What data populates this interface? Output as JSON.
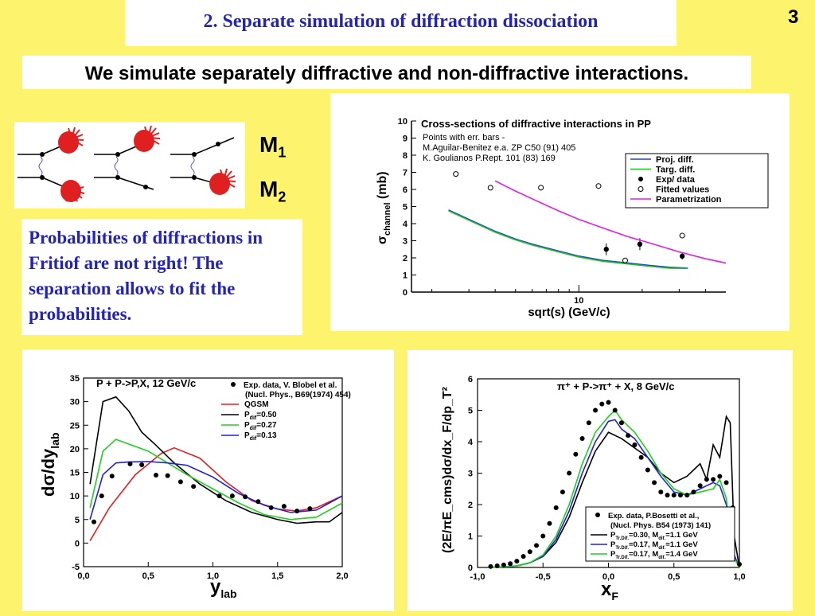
{
  "slide": {
    "title": "2. Separate simulation of diffraction dissociation",
    "page_number": "3",
    "subtitle": "We simulate separately diffractive and non-diffractive interactions.",
    "model_labels": {
      "m1_base": "M",
      "m1_sub": "1",
      "m2_base": "M",
      "m2_sub": "2"
    },
    "probabilities_text": "Probabilities of diffractions in Fritiof are not right! The separation allows to fit the probabilities.",
    "diagram_icons": [
      "diffraction-diagram-projectile",
      "diffraction-diagram-target",
      "elastic-diagram"
    ]
  },
  "chart_data": [
    {
      "id": "cross-section",
      "type": "line",
      "title": "Cross-sections of diffractive interactions in PP",
      "notes": [
        "Points with err. bars -",
        "M.Aguilar-Benitez e.a. ZP C50 (91) 405",
        "K. Goulianos P.Rept. 101 (83) 169"
      ],
      "xlabel": "sqrt(s) (GeV/c)",
      "ylabel_main": "σ",
      "ylabel_sub": "channel",
      "ylabel_unit": "(mb)",
      "x_scale": "log",
      "xlim": [
        1.6,
        50
      ],
      "ylim": [
        0,
        10
      ],
      "yticks": [
        "0",
        "1",
        "2",
        "3",
        "4",
        "5",
        "6",
        "7",
        "8",
        "9",
        "10"
      ],
      "xticks": [
        {
          "value": 10,
          "label": "10"
        }
      ],
      "legend_position": "top-right",
      "series": [
        {
          "name": "Proj. diff.",
          "color": "#2040d0",
          "style": "line",
          "x": [
            2.4,
            3,
            4,
            5,
            6,
            8,
            10,
            13,
            17,
            22,
            27,
            33
          ],
          "y": [
            4.8,
            4.25,
            3.55,
            3.1,
            2.8,
            2.4,
            2.1,
            1.85,
            1.7,
            1.55,
            1.45,
            1.4
          ]
        },
        {
          "name": "Targ. diff.",
          "color": "#20c020",
          "style": "line",
          "x": [
            2.4,
            3,
            4,
            5,
            6,
            8,
            10,
            13,
            17,
            22,
            27,
            33
          ],
          "y": [
            4.75,
            4.2,
            3.5,
            3.05,
            2.75,
            2.35,
            2.05,
            1.8,
            1.65,
            1.5,
            1.4,
            1.38
          ]
        },
        {
          "name": "Exp/ data",
          "color": "#000000",
          "style": "points-filled",
          "x": [
            13.5,
            19.5,
            31
          ],
          "y": [
            2.5,
            2.8,
            2.1
          ],
          "err": [
            0.35,
            0.35,
            0.2
          ]
        },
        {
          "name": "Fitted values",
          "color": "#000000",
          "style": "points-open",
          "x": [
            2.6,
            3.8,
            6.6,
            12.4,
            16.6,
            31
          ],
          "y": [
            6.9,
            6.1,
            6.1,
            6.2,
            1.85,
            3.3
          ]
        },
        {
          "name": "Parametrization",
          "color": "#e020e0",
          "style": "line",
          "x": [
            4,
            5,
            6,
            8,
            10,
            13,
            17,
            22,
            30,
            40,
            50
          ],
          "y": [
            6.5,
            5.9,
            5.45,
            4.75,
            4.25,
            3.75,
            3.25,
            2.85,
            2.35,
            1.95,
            1.7
          ]
        }
      ]
    },
    {
      "id": "pp-rapidity",
      "type": "line",
      "title": "P + P->P,X, 12 GeV/c",
      "xlabel_main": "y",
      "xlabel_sub": "lab",
      "ylabel_main": "dσ/dy",
      "ylabel_sub": "lab",
      "xlim": [
        0,
        2
      ],
      "ylim": [
        -5,
        35
      ],
      "xticks": [
        "0,0",
        "0,5",
        "1,0",
        "1,5",
        "2,0"
      ],
      "yticks": [
        "-5",
        "0",
        "5",
        "10",
        "15",
        "20",
        "25",
        "30",
        "35"
      ],
      "legend_position": "top-right",
      "legend_title": "Exp. data, V. Blobel et al.",
      "legend_title2": "(Nucl. Phys., B69(1974) 454)",
      "series": [
        {
          "name": "QGSM",
          "color": "#e02020",
          "style": "line",
          "x": [
            0.05,
            0.2,
            0.4,
            0.6,
            0.7,
            0.9,
            1.1,
            1.3,
            1.5,
            1.65,
            1.8,
            2.0
          ],
          "y": [
            0.5,
            7.5,
            14.5,
            19,
            20.2,
            18,
            13,
            9,
            7.2,
            6.8,
            7.5,
            10
          ]
        },
        {
          "name": "P_dif=0.50",
          "name_base": "P",
          "name_sub": "dif",
          "name_val": "=0.50",
          "color": "#000000",
          "style": "line",
          "x": [
            0.05,
            0.15,
            0.25,
            0.35,
            0.45,
            0.55,
            0.7,
            0.9,
            1.1,
            1.3,
            1.5,
            1.65,
            1.8,
            1.9,
            2.0
          ],
          "y": [
            12.5,
            30,
            31,
            28,
            23.5,
            21,
            17,
            12.5,
            9,
            6.5,
            5,
            4.2,
            4.5,
            4.5,
            6.5
          ]
        },
        {
          "name": "P_dif=0.27",
          "name_base": "P",
          "name_sub": "dif",
          "name_val": "=0.27",
          "color": "#20d020",
          "style": "line",
          "x": [
            0.05,
            0.15,
            0.25,
            0.35,
            0.5,
            0.65,
            0.8,
            1.0,
            1.2,
            1.4,
            1.6,
            1.8,
            2.0
          ],
          "y": [
            7.5,
            19.5,
            22,
            21,
            19.5,
            17,
            14.5,
            11.5,
            8.5,
            6,
            5,
            5.5,
            8.5
          ]
        },
        {
          "name": "P_dif=0.13",
          "name_base": "P",
          "name_sub": "dif",
          "name_val": "=0.13",
          "color": "#2020d0",
          "style": "line",
          "x": [
            0.05,
            0.15,
            0.25,
            0.35,
            0.5,
            0.65,
            0.8,
            1.0,
            1.2,
            1.4,
            1.6,
            1.8,
            2.0
          ],
          "y": [
            5,
            14.5,
            17,
            17.2,
            17.3,
            17,
            16.5,
            14,
            10.5,
            8,
            6.5,
            7,
            10
          ]
        },
        {
          "name": "Exp. data",
          "color": "#000000",
          "style": "points-filled",
          "x": [
            0.08,
            0.14,
            0.22,
            0.36,
            0.45,
            0.56,
            0.65,
            0.75,
            0.85,
            1.05,
            1.15,
            1.25,
            1.35,
            1.45,
            1.55,
            1.65,
            1.75
          ],
          "y": [
            4.5,
            10,
            14.2,
            16.8,
            16.6,
            14.4,
            14.3,
            13,
            12,
            10,
            10,
            9.8,
            8.8,
            7.5,
            7.8,
            6.8,
            7.3
          ]
        }
      ]
    },
    {
      "id": "pion-xf",
      "type": "line",
      "title": "π⁺ + P->π⁺ + X, 8 GeV/c",
      "xlabel_main": "x",
      "xlabel_sub": "F",
      "ylabel": "(2E/πE_cms)dσ/dx_F/dp_T²",
      "xlim": [
        -1,
        1
      ],
      "ylim": [
        0,
        6
      ],
      "xticks": [
        "-1,0",
        "-0,5",
        "0,0",
        "0,5",
        "1,0"
      ],
      "yticks": [
        "0",
        "1",
        "2",
        "3",
        "4",
        "5",
        "6"
      ],
      "legend_position": "bottom-right",
      "legend_title": "Exp. data, P.Bosetti et al.,",
      "legend_title2": "(Nucl. Phys. B54 (1973) 141)",
      "series": [
        {
          "name": "P_Tr.Dif.=0.30, M_dif.=1.1 GeV",
          "name_a": "P",
          "name_a_sub": "Tr.Dif.",
          "name_b": "=0.30, M",
          "name_b_sub": "dif.",
          "name_c": "=1.1 GeV",
          "color": "#000000",
          "style": "line",
          "x": [
            -0.92,
            -0.8,
            -0.7,
            -0.6,
            -0.5,
            -0.4,
            -0.3,
            -0.2,
            -0.1,
            0.0,
            0.1,
            0.2,
            0.3,
            0.4,
            0.5,
            0.6,
            0.7,
            0.75,
            0.8,
            0.85,
            0.9,
            0.93,
            0.96,
            1.0
          ],
          "y": [
            0,
            0.02,
            0.05,
            0.15,
            0.35,
            0.8,
            1.6,
            2.7,
            3.7,
            4.3,
            4.1,
            3.8,
            3.5,
            3.0,
            2.7,
            2.9,
            3.3,
            2.8,
            3.9,
            3.5,
            4.8,
            4.6,
            1.0,
            0
          ]
        },
        {
          "name": "P_Tr.Dif.=0.17, M_dif.=1.1 GeV",
          "name_a": "P",
          "name_a_sub": "Tr.Dif.",
          "name_b": "=0.17, M",
          "name_b_sub": "dif.",
          "name_c": "=1.1 GeV",
          "color": "#2020d0",
          "style": "line",
          "x": [
            -0.92,
            -0.8,
            -0.7,
            -0.6,
            -0.5,
            -0.4,
            -0.3,
            -0.2,
            -0.1,
            0.0,
            0.05,
            0.1,
            0.2,
            0.3,
            0.4,
            0.5,
            0.6,
            0.7,
            0.8,
            0.85,
            0.9,
            0.95,
            1.0
          ],
          "y": [
            0,
            0.02,
            0.05,
            0.15,
            0.35,
            0.9,
            1.8,
            3.0,
            4.0,
            4.65,
            4.7,
            4.4,
            4.1,
            3.5,
            2.9,
            2.4,
            2.3,
            2.5,
            2.7,
            2.6,
            2.0,
            0.5,
            0
          ]
        },
        {
          "name": "P_Tr.Dif.=0.17, M_dif.=1.4 GeV",
          "name_a": "P",
          "name_a_sub": "Tr.Dif.",
          "name_b": "=0.17, M",
          "name_b_sub": "dif.",
          "name_c": "=1.4 GeV",
          "color": "#20d020",
          "style": "line",
          "x": [
            -0.92,
            -0.8,
            -0.7,
            -0.6,
            -0.5,
            -0.4,
            -0.3,
            -0.2,
            -0.1,
            0.0,
            0.05,
            0.1,
            0.2,
            0.3,
            0.4,
            0.5,
            0.6,
            0.7,
            0.8,
            0.85,
            0.9,
            0.93,
            0.96,
            1.0
          ],
          "y": [
            0,
            0.02,
            0.05,
            0.15,
            0.4,
            1.0,
            2.0,
            3.3,
            4.3,
            4.8,
            5.0,
            4.7,
            4.3,
            3.7,
            3.0,
            2.5,
            2.3,
            2.4,
            2.5,
            2.8,
            2.2,
            1.2,
            0.3,
            0
          ]
        },
        {
          "name": "Exp. data",
          "color": "#000000",
          "style": "points-filled",
          "x": [
            -0.9,
            -0.85,
            -0.8,
            -0.75,
            -0.7,
            -0.65,
            -0.6,
            -0.55,
            -0.5,
            -0.45,
            -0.4,
            -0.35,
            -0.3,
            -0.25,
            -0.2,
            -0.15,
            -0.1,
            -0.05,
            0.0,
            0.05,
            0.1,
            0.15,
            0.2,
            0.25,
            0.3,
            0.35,
            0.4,
            0.45,
            0.5,
            0.55,
            0.6,
            0.65,
            0.7,
            0.75,
            0.8,
            0.85,
            0.9,
            0.95,
            1.0
          ],
          "y": [
            0.03,
            0.05,
            0.08,
            0.12,
            0.2,
            0.35,
            0.5,
            0.7,
            1.0,
            1.4,
            1.9,
            2.4,
            3.0,
            3.6,
            4.1,
            4.6,
            5.0,
            5.2,
            5.25,
            5.0,
            4.6,
            4.2,
            3.9,
            3.5,
            3.1,
            2.7,
            2.4,
            2.3,
            2.3,
            2.3,
            2.3,
            2.4,
            2.6,
            2.8,
            2.8,
            2.9,
            2.7,
            1.9,
            0.1
          ]
        }
      ]
    }
  ]
}
